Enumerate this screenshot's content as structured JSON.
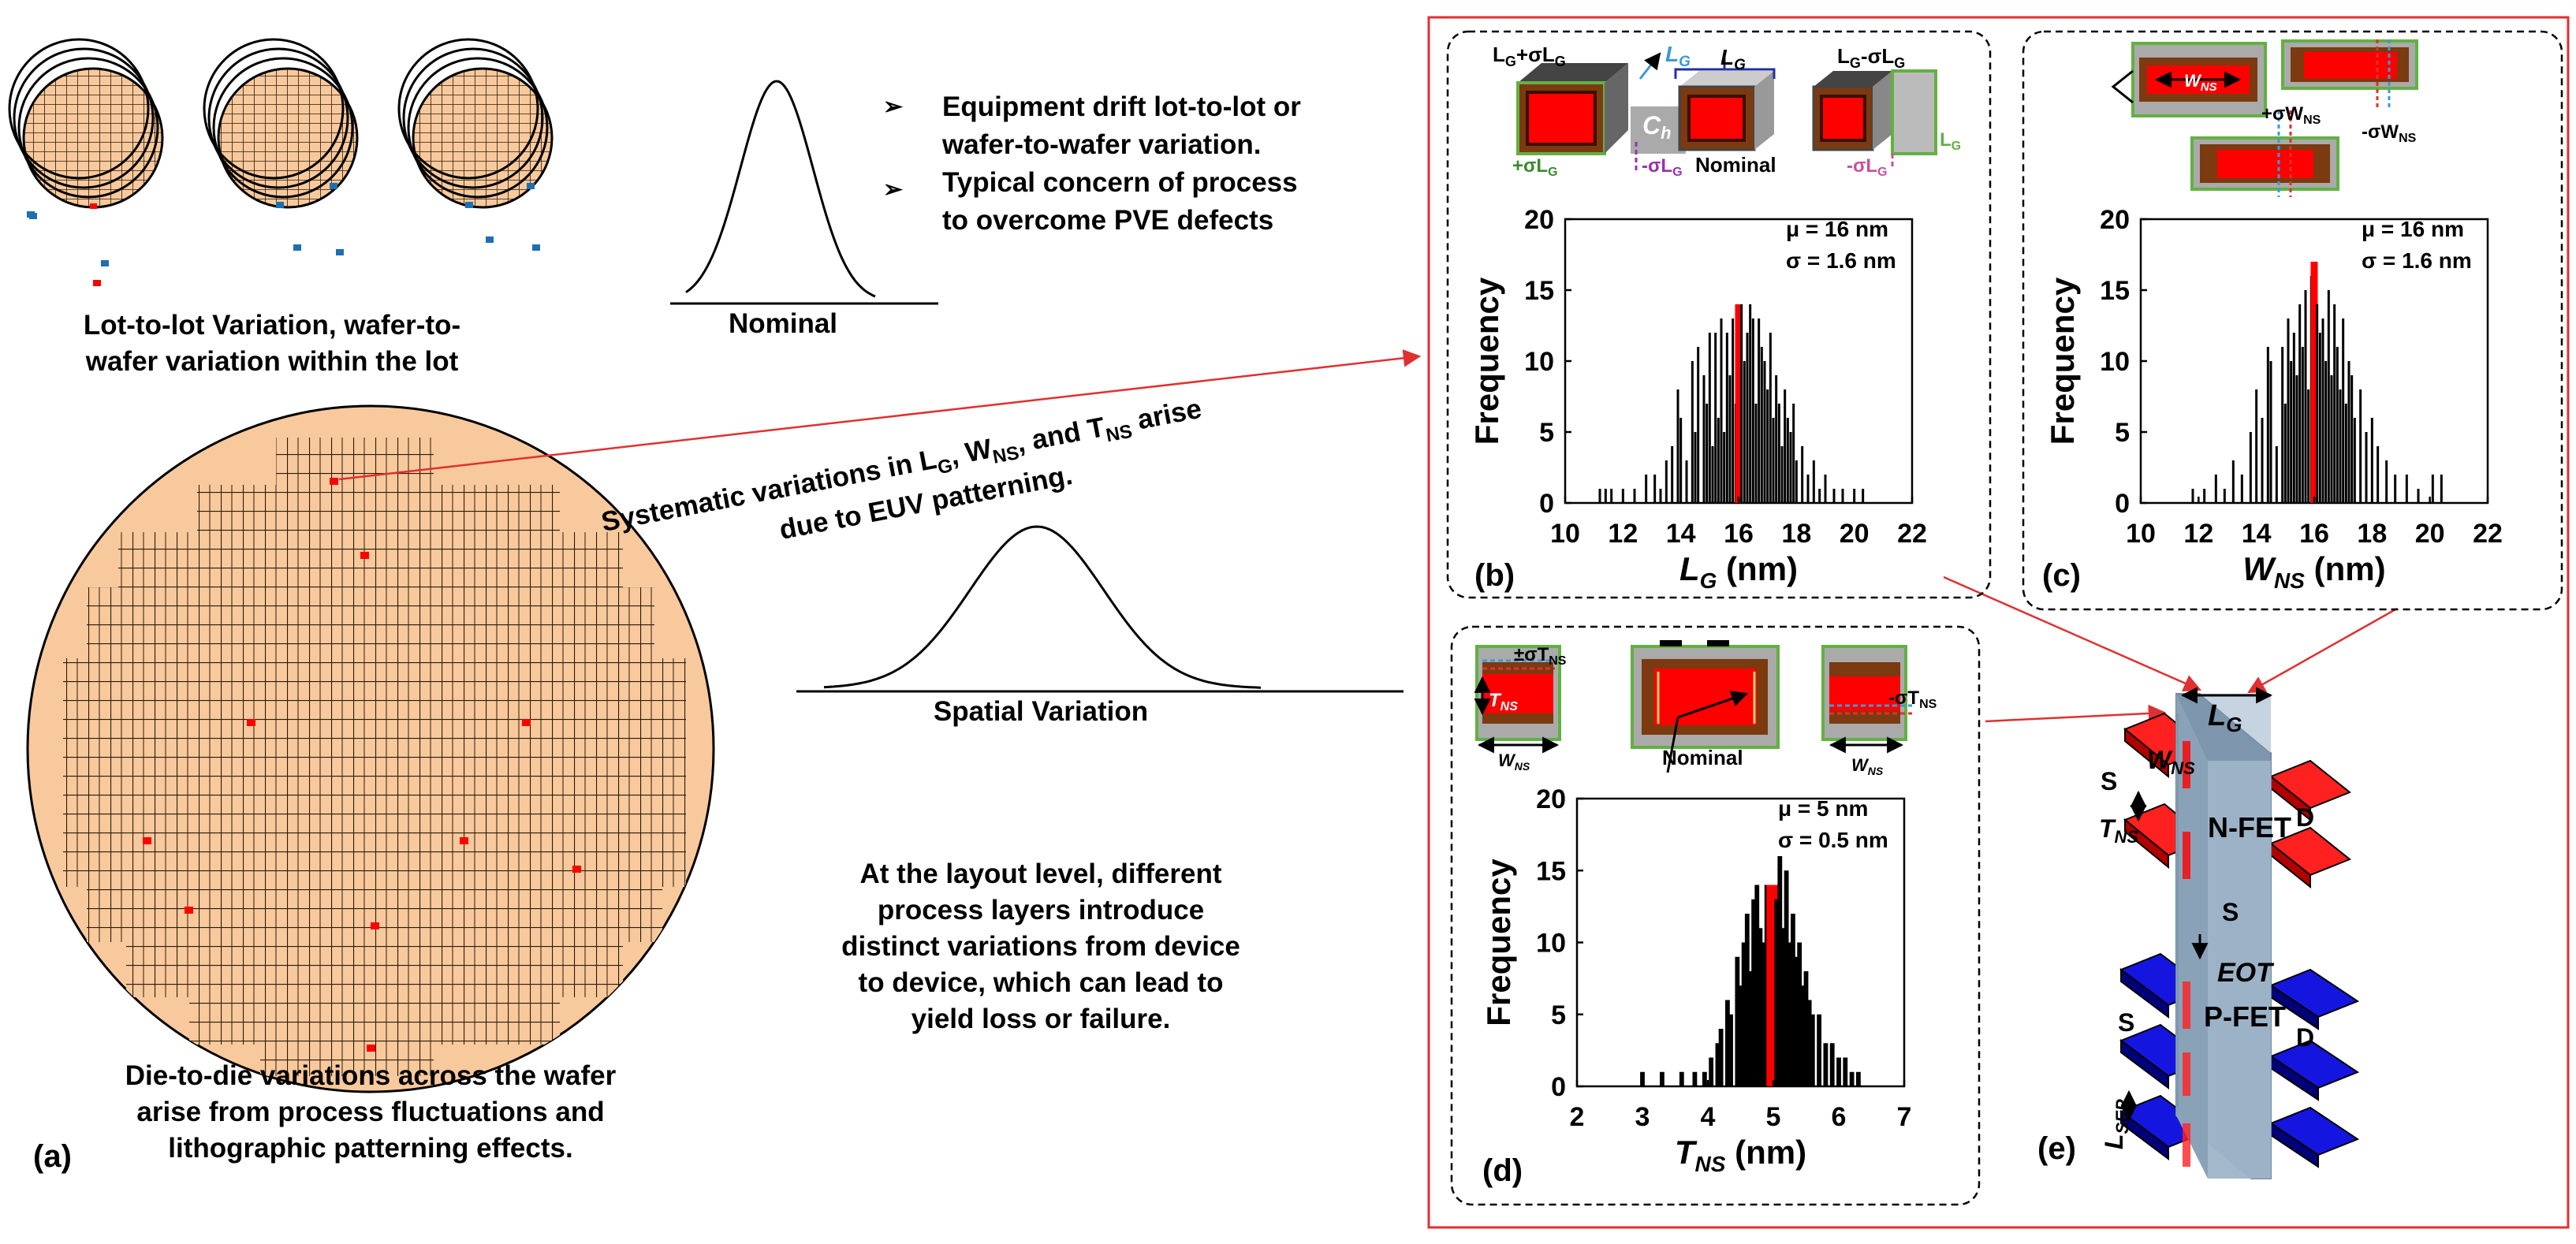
{
  "left": {
    "lot_caption_1": "Lot-to-lot Variation, wafer-to-",
    "lot_caption_2": "wafer variation within the lot",
    "nominal_label": "Nominal",
    "bullets": [
      "Equipment drift lot-to-lot or",
      "wafer-to-wafer variation.",
      "Typical concern of process",
      "to overcome PVE defects"
    ],
    "euv_line_1": "Systematic variations in L",
    "euv_sub_g": "G",
    "euv_sep_1": ", W",
    "euv_sub_ns": "NS",
    "euv_sep_2": ", and T",
    "euv_sub_ns2": "NS",
    "euv_line_1_end": " arise",
    "euv_line_2": "due to EUV patterning.",
    "spatial_label": "Spatial Variation",
    "layout_text": [
      "At the layout level, different",
      "process layers introduce",
      "distinct variations from device",
      "to device, which can lead to",
      "yield loss or failure."
    ],
    "die_text": [
      "Die-to-die variations across the wafer",
      "arise from process fluctuations and",
      "lithographic patterning effects."
    ],
    "panel_a": "(a)"
  },
  "colors": {
    "wafer": "#F8C99C",
    "die_line": "#2b1a0a",
    "red": "#FF0000",
    "blue_die": "#1f6fb0",
    "frame": "#E03030",
    "gate_grey": "#9EB4C8",
    "nfet_red": "#FF2020",
    "pfet_blue": "#1515E0",
    "green": "#63B043",
    "brown": "#7B3A10"
  },
  "chart_data": [
    {
      "type": "bar",
      "panel": "(b)",
      "title": "",
      "xlabel": "L",
      "xlabel_sub": "G",
      "xlabel_unit": " (nm)",
      "ylabel": "Frequency",
      "xlim": [
        10,
        22
      ],
      "ylim": [
        0,
        20
      ],
      "xticks": [
        10,
        12,
        14,
        16,
        18,
        20,
        22
      ],
      "yticks": [
        0,
        5,
        10,
        15,
        20
      ],
      "stats": [
        "μ = 16 nm",
        "σ = 1.6 nm"
      ],
      "highlight": 16,
      "x": [
        11.2,
        11.4,
        11.6,
        12.0,
        12.4,
        12.8,
        13.1,
        13.3,
        13.5,
        13.7,
        13.9,
        14.0,
        14.2,
        14.4,
        14.5,
        14.6,
        14.8,
        14.9,
        15.0,
        15.1,
        15.2,
        15.3,
        15.4,
        15.5,
        15.6,
        15.7,
        15.8,
        15.9,
        16.0,
        16.1,
        16.2,
        16.3,
        16.4,
        16.5,
        16.6,
        16.7,
        16.8,
        16.9,
        17.0,
        17.1,
        17.2,
        17.3,
        17.4,
        17.5,
        17.6,
        17.7,
        17.8,
        17.9,
        18.0,
        18.2,
        18.4,
        18.6,
        18.8,
        19.0,
        19.3,
        19.6,
        20.0,
        20.3
      ],
      "values": [
        1,
        1,
        1,
        1,
        1,
        2,
        2,
        1,
        3,
        4,
        8,
        6,
        3,
        10,
        5,
        11,
        9,
        7,
        12,
        4,
        12,
        6,
        13,
        5,
        12,
        9,
        13,
        7,
        14,
        14,
        10,
        12,
        14,
        13,
        7,
        13,
        11,
        10,
        8,
        12,
        6,
        9,
        7,
        4,
        8,
        6,
        5,
        7,
        3,
        4,
        2,
        3,
        1,
        2,
        1,
        1,
        1,
        1
      ]
    },
    {
      "type": "bar",
      "panel": "(c)",
      "title": "",
      "xlabel": "W",
      "xlabel_sub": "NS",
      "xlabel_unit": " (nm)",
      "ylabel": "Frequency",
      "xlim": [
        10,
        22
      ],
      "ylim": [
        0,
        20
      ],
      "xticks": [
        10,
        12,
        14,
        16,
        18,
        20,
        22
      ],
      "yticks": [
        0,
        5,
        10,
        15,
        20
      ],
      "stats": [
        "μ = 16 nm",
        "σ = 1.6 nm"
      ],
      "highlight": 16,
      "x": [
        11.8,
        12.2,
        12.6,
        12.9,
        13.2,
        13.5,
        13.8,
        14.0,
        14.2,
        14.4,
        14.5,
        14.7,
        14.9,
        15.0,
        15.1,
        15.2,
        15.3,
        15.4,
        15.5,
        15.6,
        15.7,
        15.8,
        15.9,
        16.0,
        16.1,
        16.2,
        16.3,
        16.4,
        16.5,
        16.6,
        16.7,
        16.8,
        16.9,
        17.0,
        17.1,
        17.2,
        17.3,
        17.4,
        17.6,
        17.8,
        18.0,
        18.2,
        18.5,
        18.8,
        19.2,
        19.6,
        20.1,
        20.4
      ],
      "values": [
        1,
        1,
        2,
        1,
        3,
        2,
        5,
        8,
        6,
        11,
        10,
        4,
        11,
        7,
        13,
        10,
        12,
        9,
        14,
        11,
        15,
        8,
        16,
        17,
        14,
        12,
        13,
        10,
        15,
        9,
        14,
        11,
        8,
        13,
        7,
        10,
        9,
        6,
        8,
        5,
        6,
        4,
        3,
        2,
        2,
        1,
        2,
        2
      ]
    },
    {
      "type": "bar",
      "panel": "(d)",
      "title": "",
      "xlabel": "T",
      "xlabel_sub": "NS",
      "xlabel_unit": " (nm)",
      "ylabel": "Frequency",
      "xlim": [
        2,
        7
      ],
      "ylim": [
        0,
        20
      ],
      "xticks": [
        2,
        3,
        4,
        5,
        6,
        7
      ],
      "yticks": [
        0,
        5,
        10,
        15,
        20
      ],
      "stats": [
        "μ = 5 nm",
        "σ = 0.5 nm"
      ],
      "highlight": 5,
      "x": [
        3.0,
        3.3,
        3.6,
        3.8,
        3.95,
        4.05,
        4.15,
        4.2,
        4.3,
        4.35,
        4.45,
        4.5,
        4.55,
        4.6,
        4.65,
        4.7,
        4.75,
        4.8,
        4.85,
        4.9,
        4.95,
        5.0,
        5.05,
        5.1,
        5.15,
        5.2,
        5.25,
        5.3,
        5.35,
        5.4,
        5.45,
        5.5,
        5.55,
        5.6,
        5.7,
        5.8,
        5.9,
        6.0,
        6.1,
        6.2,
        6.3
      ],
      "values": [
        1,
        1,
        1,
        1,
        1,
        2,
        3,
        4,
        6,
        5,
        9,
        7,
        10,
        12,
        8,
        13,
        14,
        11,
        10,
        14,
        12,
        14,
        13,
        16,
        11,
        15,
        10,
        12,
        9,
        10,
        7,
        8,
        6,
        5,
        5,
        3,
        3,
        2,
        2,
        1,
        1
      ]
    }
  ],
  "panel_b": {
    "label": "(b)",
    "lg_plus": "L",
    "lg_plus_sub": "G",
    "lg_plus_suffix": "+σL",
    "lg_plus_suffix_sub": "G",
    "lg_arrow": "L",
    "lg_arrow_sub": "G",
    "ch": "C",
    "ch_sub": "h",
    "lg_top": "L",
    "lg_top_sub": "G",
    "lg_minus": "L",
    "lg_minus_sub": "G",
    "lg_minus_suffix": "-σL",
    "lg_minus_suffix_sub": "G",
    "plus_sigma": "+σL",
    "plus_sigma_sub": "G",
    "minus_sigma": "-σL",
    "minus_sigma_sub": "G",
    "nominal": "Nominal",
    "minus_sigma2": "-σL",
    "minus_sigma2_sub": "G",
    "lg_right": "L",
    "lg_right_sub": "G"
  },
  "panel_c": {
    "label": "(c)",
    "wns": "W",
    "wns_sub": "NS",
    "plus": "+σW",
    "plus_sub": "NS",
    "minus": "-σW",
    "minus_sub": "NS"
  },
  "panel_d": {
    "label": "(d)",
    "plus": "±σT",
    "plus_sub": "NS",
    "tns": "T",
    "tns_sub": "NS",
    "wns_l": "W",
    "wns_l_sub": "NS",
    "nominal": "Nominal",
    "minus": "-σT",
    "minus_sub": "NS",
    "wns_r": "W",
    "wns_r_sub": "NS"
  },
  "panel_e": {
    "label": "(e)",
    "lg": "L",
    "lg_sub": "G",
    "s1": "S",
    "wns": "W",
    "wns_sub": "NS",
    "tns": "T",
    "tns_sub": "NS",
    "nfet": "N-FET",
    "d1": "D",
    "s_mid": "S",
    "eot": "EOT",
    "s2": "S",
    "pfet": "P-FET",
    "d2": "D",
    "lsep": "L",
    "lsep_sub": "SEP"
  }
}
